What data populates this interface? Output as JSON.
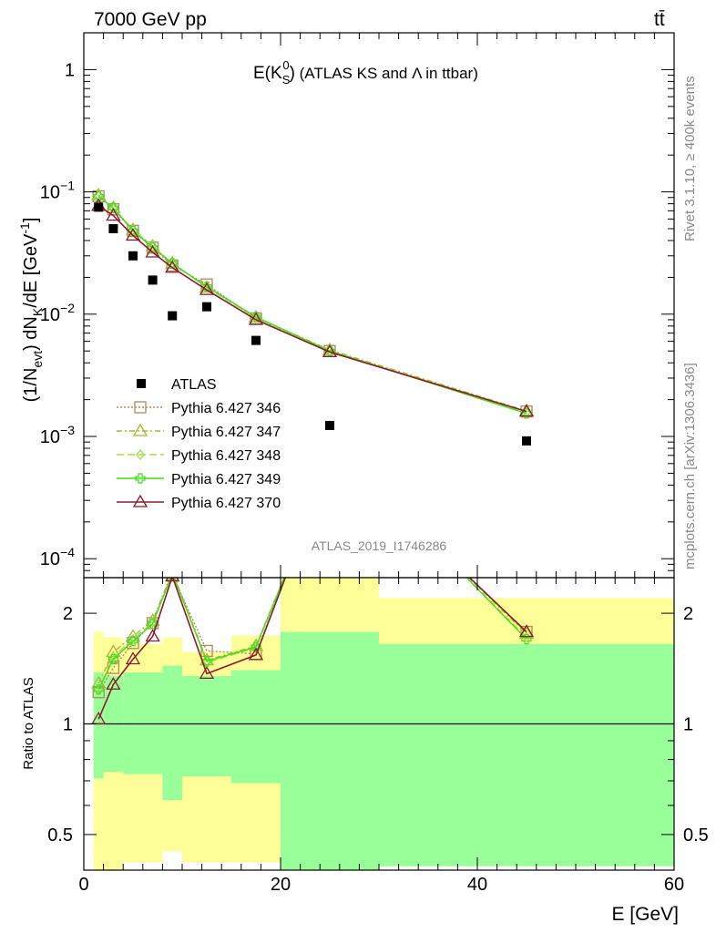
{
  "header": {
    "left": "7000 GeV pp",
    "right": "tt̄"
  },
  "side_labels": {
    "rivet": "Rivet 3.1.10, ≥ 400k events",
    "mcplots": "mcplots.cern.ch [arXiv:1306.3436]"
  },
  "watermark": "ATLAS_2019_I1746286",
  "colors": {
    "ATLAS": "#000000",
    "Pythia 6.427 346": "#b5875a",
    "Pythia 6.427 347": "#a8b832",
    "Pythia 6.427 348": "#9be04a",
    "Pythia 6.427 349": "#44dd22",
    "Pythia 6.427 370": "#8b1a2a",
    "band_outer": "#ffff99",
    "band_inner": "#99ff99"
  },
  "chart_data": [
    {
      "type": "scatter",
      "title": "E(K_S^0) (ATLAS KS and Λ in ttbar)",
      "title_parts": {
        "main": "E(K",
        "sup": "0",
        "sub": "S",
        "close": ")",
        "rest": " (ATLAS KS and Λ in ttbar)"
      },
      "ylabel": "(1/N_evt) dN_K/dE [GeV^-1]",
      "ylabel_parts": {
        "a": "(1/N",
        "a_sub": "evt",
        "b": ") dN",
        "b_sub": "K",
        "c": "/dE [GeV",
        "c_sup": "-1",
        "d": "]"
      },
      "yscale": "log",
      "xlim": [
        0,
        60
      ],
      "ylim": [
        7e-05,
        2.0
      ],
      "yticks": [
        {
          "v": 1,
          "base": "1",
          "exp": ""
        },
        {
          "v": 0.1,
          "base": "10",
          "exp": "−1"
        },
        {
          "v": 0.01,
          "base": "10",
          "exp": "−2"
        },
        {
          "v": 0.001,
          "base": "10",
          "exp": "−3"
        },
        {
          "v": 0.0001,
          "base": "10",
          "exp": "−4"
        }
      ],
      "legend": "middle-left",
      "legend_entries": [
        "ATLAS",
        "Pythia 6.427 346",
        "Pythia 6.427 347",
        "Pythia 6.427 348",
        "Pythia 6.427 349",
        "Pythia 6.427 370"
      ],
      "series": [
        {
          "name": "ATLAS",
          "marker": "square",
          "x": [
            1.5,
            3.0,
            5.0,
            7.0,
            9.0,
            12.5,
            17.5,
            25.0,
            45.0
          ],
          "y": [
            0.075,
            0.05,
            0.03,
            0.019,
            0.0097,
            0.0115,
            0.0061,
            0.00123,
            0.00092
          ]
        },
        {
          "name": "Pythia 6.427 346",
          "marker": "open-square",
          "dash": "2,2",
          "x": [
            1.5,
            3.0,
            5.0,
            7.0,
            9.0,
            12.5,
            17.5,
            25.0,
            45.0
          ],
          "y": [
            0.092,
            0.072,
            0.048,
            0.035,
            0.025,
            0.0175,
            0.0092,
            0.005,
            0.0016
          ]
        },
        {
          "name": "Pythia 6.427 347",
          "marker": "open-triangle",
          "dash": "6,3,2,3",
          "x": [
            1.5,
            3.0,
            5.0,
            7.0,
            9.0,
            12.5,
            17.5,
            25.0,
            45.0
          ],
          "y": [
            0.094,
            0.074,
            0.049,
            0.036,
            0.026,
            0.0165,
            0.0094,
            0.0051,
            0.00162
          ]
        },
        {
          "name": "Pythia 6.427 348",
          "marker": "open-diamond",
          "dash": "8,4",
          "x": [
            1.5,
            3.0,
            5.0,
            7.0,
            9.0,
            12.5,
            17.5,
            25.0,
            45.0
          ],
          "y": [
            0.093,
            0.073,
            0.049,
            0.036,
            0.026,
            0.0165,
            0.0093,
            0.005,
            0.00158
          ]
        },
        {
          "name": "Pythia 6.427 349",
          "marker": "open-cross",
          "dash": "",
          "x": [
            1.5,
            3.0,
            5.0,
            7.0,
            9.0,
            12.5,
            17.5,
            25.0,
            45.0
          ],
          "y": [
            0.092,
            0.074,
            0.048,
            0.035,
            0.026,
            0.0168,
            0.0095,
            0.005,
            0.00154
          ]
        },
        {
          "name": "Pythia 6.427 370",
          "marker": "open-triangle",
          "dash": "",
          "x": [
            1.5,
            3.0,
            5.0,
            7.0,
            9.0,
            12.5,
            17.5,
            25.0,
            45.0
          ],
          "y": [
            0.077,
            0.064,
            0.044,
            0.032,
            0.024,
            0.0158,
            0.009,
            0.0049,
            0.0016
          ]
        }
      ]
    },
    {
      "type": "line",
      "ylabel": "Ratio to ATLAS",
      "xlabel": "E [GeV]",
      "yscale": "log",
      "xlim": [
        0,
        60
      ],
      "ylim": [
        0.4,
        2.5
      ],
      "yticks": [
        2,
        1,
        0.5
      ],
      "ytick_labels": [
        "2",
        "1",
        "0.5"
      ],
      "xticks": [
        0,
        20,
        40,
        60
      ],
      "xtick_labels": [
        "0",
        "20",
        "40",
        "60"
      ],
      "bins": [
        {
          "lo": 1,
          "hi": 2,
          "band_outer": [
            0.4,
            1.78
          ],
          "band_inner": [
            0.71,
            1.38
          ]
        },
        {
          "lo": 2,
          "hi": 4,
          "band_outer": [
            0.4,
            1.72
          ],
          "band_inner": [
            0.74,
            1.35
          ]
        },
        {
          "lo": 4,
          "hi": 8,
          "band_outer": [
            0.42,
            1.65
          ],
          "band_inner": [
            0.73,
            1.38
          ]
        },
        {
          "lo": 8,
          "hi": 10,
          "band_outer": [
            0.45,
            1.72
          ],
          "band_inner": [
            0.62,
            1.44
          ]
        },
        {
          "lo": 10,
          "hi": 15,
          "band_outer": [
            0.42,
            1.57
          ],
          "band_inner": [
            0.72,
            1.35
          ]
        },
        {
          "lo": 15,
          "hi": 20,
          "band_outer": [
            0.42,
            1.74
          ],
          "band_inner": [
            0.69,
            1.4
          ]
        },
        {
          "lo": 20,
          "hi": 30,
          "band_outer": [
            0.4,
            2.5
          ],
          "band_inner": [
            0.4,
            1.78
          ]
        },
        {
          "lo": 30,
          "hi": 60,
          "band_outer": [
            0.41,
            2.2
          ],
          "band_inner": [
            0.41,
            1.65
          ]
        }
      ],
      "series": [
        {
          "name": "Pythia 6.427 346",
          "x": [
            1.5,
            3.0,
            5.0,
            7.0,
            9.0,
            12.5,
            17.5
          ],
          "y": [
            1.22,
            1.42,
            1.66,
            1.88,
            2.55,
            1.58,
            1.55
          ]
        },
        {
          "name": "Pythia 6.427 347",
          "x": [
            1.5,
            3.0,
            5.0,
            7.0,
            9.0,
            12.5,
            17.5
          ],
          "y": [
            1.29,
            1.57,
            1.73,
            1.91,
            2.6,
            1.49,
            1.63
          ]
        },
        {
          "name": "Pythia 6.427 348",
          "x": [
            1.5,
            3.0,
            5.0,
            7.0,
            9.0,
            12.5,
            17.5
          ],
          "y": [
            1.24,
            1.52,
            1.7,
            1.89,
            2.58,
            1.47,
            1.61
          ]
        },
        {
          "name": "Pythia 6.427 349",
          "x": [
            1.5,
            3.0,
            5.0,
            7.0,
            9.0,
            12.5,
            17.5
          ],
          "y": [
            1.24,
            1.5,
            1.68,
            1.87,
            2.57,
            1.48,
            1.62
          ]
        },
        {
          "name": "Pythia 6.427 370",
          "x": [
            1.5,
            3.0,
            5.0,
            7.0,
            9.0,
            12.5,
            17.5
          ],
          "y": [
            1.03,
            1.28,
            1.5,
            1.73,
            2.52,
            1.37,
            1.54
          ]
        }
      ],
      "tail_series": [
        {
          "name": "Pythia 6.427 346",
          "x": [
            45.0
          ],
          "y": [
            1.78
          ]
        },
        {
          "name": "Pythia 6.427 347",
          "x": [
            45.0
          ],
          "y": [
            1.76
          ]
        },
        {
          "name": "Pythia 6.427 348",
          "x": [
            45.0
          ],
          "y": [
            1.72
          ]
        },
        {
          "name": "Pythia 6.427 349",
          "x": [
            45.0
          ],
          "y": [
            1.7
          ]
        },
        {
          "name": "Pythia 6.427 370",
          "x": [
            45.0
          ],
          "y": [
            1.78
          ]
        }
      ]
    }
  ]
}
